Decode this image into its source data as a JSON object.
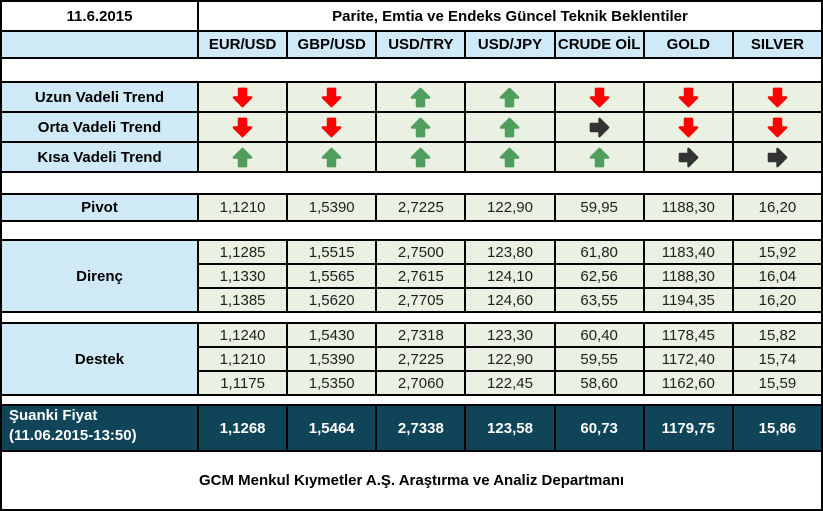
{
  "header": {
    "date": "11.6.2015",
    "title": "Parite, Emtia ve Endeks Güncel Teknik Beklentiler"
  },
  "columns": [
    "EUR/USD",
    "GBP/USD",
    "USD/TRY",
    "USD/JPY",
    "CRUDE OİL",
    "GOLD",
    "SILVER"
  ],
  "trends": {
    "rows": [
      {
        "label": "Uzun Vadeli Trend",
        "arrows": [
          "down",
          "down",
          "up",
          "up",
          "down",
          "down",
          "down"
        ]
      },
      {
        "label": "Orta Vadeli Trend",
        "arrows": [
          "down",
          "down",
          "up",
          "up",
          "right",
          "down",
          "down"
        ]
      },
      {
        "label": "Kısa Vadeli Trend",
        "arrows": [
          "up",
          "up",
          "up",
          "up",
          "up",
          "right",
          "right"
        ]
      }
    ]
  },
  "pivot": {
    "label": "Pivot",
    "values": [
      "1,1210",
      "1,5390",
      "2,7225",
      "122,90",
      "59,95",
      "1188,30",
      "16,20"
    ]
  },
  "resistance": {
    "label": "Direnç",
    "rows": [
      [
        "1,1285",
        "1,5515",
        "2,7500",
        "123,80",
        "61,80",
        "1183,40",
        "15,92"
      ],
      [
        "1,1330",
        "1,5565",
        "2,7615",
        "124,10",
        "62,56",
        "1188,30",
        "16,04"
      ],
      [
        "1,1385",
        "1,5620",
        "2,7705",
        "124,60",
        "63,55",
        "1194,35",
        "16,20"
      ]
    ]
  },
  "support": {
    "label": "Destek",
    "rows": [
      [
        "1,1240",
        "1,5430",
        "2,7318",
        "123,30",
        "60,40",
        "1178,45",
        "15,82"
      ],
      [
        "1,1210",
        "1,5390",
        "2,7225",
        "122,90",
        "59,55",
        "1172,40",
        "15,74"
      ],
      [
        "1,1175",
        "1,5350",
        "2,7060",
        "122,45",
        "58,60",
        "1162,60",
        "15,59"
      ]
    ]
  },
  "current_price": {
    "label": "Şuanki Fiyat",
    "sub_label": "(11.06.2015-13:50)",
    "values": [
      "1,1268",
      "1,5464",
      "2,7338",
      "123,58",
      "60,73",
      "1179,75",
      "15,86"
    ]
  },
  "footer": {
    "text": "GCM Menkul Kıymetler A.Ş. Araştırma ve Analiz Departmanı"
  },
  "colors": {
    "up": "#4f9e5e",
    "down": "#fe0000",
    "right": "#333333",
    "label_bg": "#cfe9f7",
    "value_bg": "#eaf1e3",
    "current_bg": "#0f4459"
  }
}
